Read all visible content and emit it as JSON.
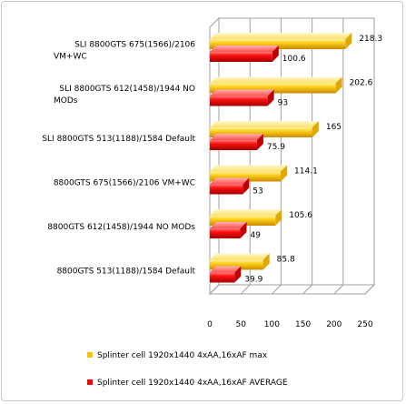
{
  "chart_data": {
    "type": "bar",
    "orientation": "horizontal",
    "style": "3d",
    "categories": [
      "SLI 8800GTS 675(1566)/2106 VM+WC",
      "SLI 8800GTS 612(1458)/1944 NO MODs",
      "SLI 8800GTS 513(1188)/1584 Default",
      "8800GTS 675(1566)/2106 VM+WC",
      "8800GTS 612(1458)/1944 NO MODs",
      "8800GTS 513(1188)/1584 Default"
    ],
    "category_lines": [
      [
        "SLI 8800GTS 675(1566)/2106",
        "VM+WC"
      ],
      [
        "SLI 8800GTS 612(1458)/1944 NO",
        "MODs"
      ],
      [
        "SLI 8800GTS 513(1188)/1584 Default"
      ],
      [
        "8800GTS 675(1566)/2106 VM+WC"
      ],
      [
        "8800GTS 612(1458)/1944 NO MODs"
      ],
      [
        "8800GTS 513(1188)/1584 Default"
      ]
    ],
    "series": [
      {
        "name": "Splinter cell 1920x1440 4xAA,16xAF max",
        "color": "#FFC000",
        "values": [
          218.3,
          202.6,
          165,
          114.1,
          105.6,
          85.8
        ]
      },
      {
        "name": "Splinter cell 1920x1440 4xAA,16xAF AVERAGE",
        "color": "#FF0000",
        "values": [
          100.6,
          93,
          75.9,
          53,
          49,
          39.9
        ]
      }
    ],
    "value_labels": [
      [
        "218.3",
        "202.6",
        "165",
        "114.1",
        "105.6",
        "85.8"
      ],
      [
        "100.6",
        "93",
        "75.9",
        "53",
        "49",
        "39.9"
      ]
    ],
    "xlim": [
      0,
      250
    ],
    "xticks": [
      "0",
      "50",
      "100",
      "150",
      "200",
      "250"
    ],
    "grid": true,
    "legend_position": "bottom"
  }
}
